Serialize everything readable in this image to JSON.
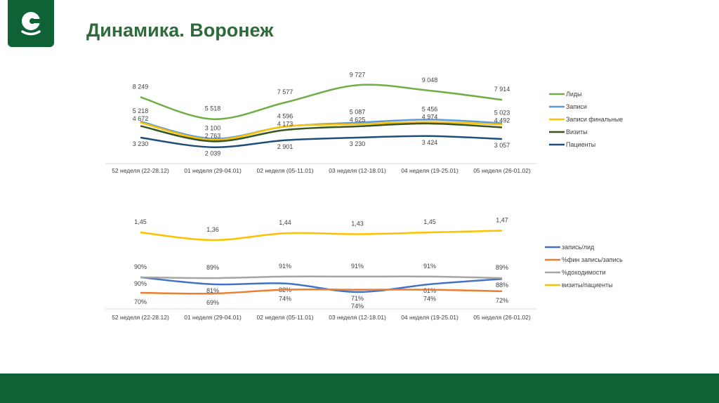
{
  "header": {
    "title": "Динамика. Воронеж",
    "logo_icon": "sheep-c-logo"
  },
  "colors": {
    "brand": "#0f6136",
    "title": "#2f6a3a"
  },
  "chart_data": [
    {
      "type": "line",
      "categories": [
        "52 неделя (22-28.12)",
        "01 неделя (29-04.01)",
        "02 неделя (05-11.01)",
        "03 неделя (12-18.01)",
        "04 неделя (19-25.01)",
        "05 неделя (26-01.02)"
      ],
      "legend_position": "right",
      "grid": false,
      "series": [
        {
          "name": "Лиды",
          "color": "#70ad47",
          "values": [
            8249,
            5518,
            7577,
            9727,
            9048,
            7914
          ],
          "labels": [
            "8 249",
            "5 518",
            "7 577",
            "9 727",
            "9 048",
            "7 914"
          ]
        },
        {
          "name": "Записи",
          "color": "#5b9bd5",
          "values": [
            5218,
            3100,
            4596,
            5087,
            5456,
            5023
          ],
          "labels": [
            "5 218",
            "3 100",
            "4 596",
            "5 087",
            "5 456",
            "5 023"
          ]
        },
        {
          "name": "Записи финальные",
          "color": "#ffc000",
          "values": [
            5100,
            2950,
            4600,
            4900,
            5150,
            4850
          ],
          "labels": []
        },
        {
          "name": "Визиты",
          "color": "#375623",
          "values": [
            4672,
            2763,
            4173,
            4625,
            4974,
            4492
          ],
          "labels": [
            "4 672",
            "2 763",
            "4 173",
            "4 625",
            "4 974",
            "4 492"
          ]
        },
        {
          "name": "Пациенты",
          "color": "#1f4e79",
          "values": [
            3230,
            2039,
            2901,
            3230,
            3424,
            3057
          ],
          "labels": [
            "3 230",
            "2 039",
            "2 901",
            "3 230",
            "3 424",
            "3 057"
          ]
        }
      ]
    },
    {
      "type": "line",
      "categories": [
        "52 неделя (22-28.12)",
        "01 неделя (29-04.01)",
        "02 неделя (05-11.01)",
        "03 неделя (12-18.01)",
        "04 неделя (19-25.01)",
        "05 неделя (26-01.02)"
      ],
      "legend_position": "right",
      "grid": false,
      "series": [
        {
          "name": "запись/лид",
          "color": "#4472c4",
          "values": [
            90,
            81,
            82,
            71,
            81,
            88
          ],
          "labels": [
            "90%",
            "81%",
            "82%",
            "71%",
            "81%",
            "88%"
          ]
        },
        {
          "name": "%фин запись/запись",
          "color": "#ed7d31",
          "values": [
            70,
            69,
            74,
            74,
            74,
            72
          ],
          "labels": [
            "70%",
            "69%",
            "74%",
            "74%",
            "74%",
            "72%"
          ]
        },
        {
          "name": "%доходимости",
          "color": "#a5a5a5",
          "values": [
            90,
            89,
            91,
            91,
            91,
            89
          ],
          "labels": [
            "90%",
            "89%",
            "91%",
            "91%",
            "91%",
            "89%"
          ]
        },
        {
          "name": "визиты/пациенты",
          "color": "#ffc000",
          "values": [
            1.45,
            1.36,
            1.44,
            1.43,
            1.45,
            1.47
          ],
          "labels": [
            "1,45",
            "1,36",
            "1,44",
            "1,43",
            "1,45",
            "1,47"
          ],
          "axis": "secondary"
        }
      ]
    }
  ]
}
